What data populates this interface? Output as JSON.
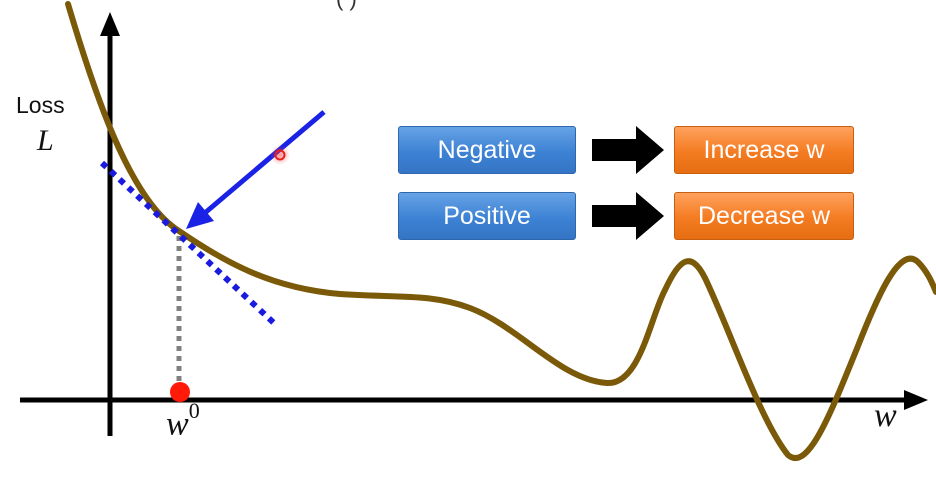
{
  "diagram": {
    "title_fragment": "( )",
    "y_axis_label": "Loss",
    "y_axis_symbol": "L",
    "x_axis_symbol": "w",
    "start_point_base": "w",
    "start_point_superscript": "0"
  },
  "rules": [
    {
      "condition": "Negative",
      "action": "Increase w"
    },
    {
      "condition": "Positive",
      "action": "Decrease w"
    }
  ],
  "colors": {
    "curve": "#7a5a08",
    "tangent": "#1b1be0",
    "gradient_arrow": "#1a22e6",
    "start_point": "#ff1a0a",
    "dropline": "#808080",
    "condition_box": "#3d82d4",
    "action_box": "#f47b21",
    "implication_arrow": "#000000"
  }
}
